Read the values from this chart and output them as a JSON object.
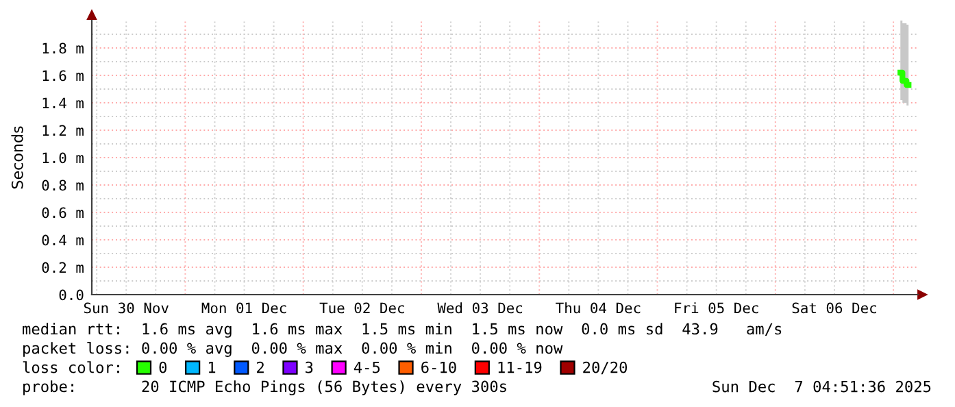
{
  "chart_data": {
    "type": "step",
    "ylabel": "Seconds",
    "legend_title": "loss color:",
    "legend": "bottom",
    "grid": true,
    "x": [
      "2025-12-07T01:25",
      "2025-12-07T02:15",
      "2025-12-07T03:05"
    ],
    "xlim": [
      "2025-11-30T05:00",
      "2025-12-07T05:00"
    ],
    "xticks": [
      {
        "value": "2025-11-30T12:00",
        "label": "Sun 30 Nov"
      },
      {
        "value": "2025-12-01T12:00",
        "label": "Mon 01 Dec"
      },
      {
        "value": "2025-12-02T12:00",
        "label": "Tue 02 Dec"
      },
      {
        "value": "2025-12-03T12:00",
        "label": "Wed 03 Dec"
      },
      {
        "value": "2025-12-04T12:00",
        "label": "Thu 04 Dec"
      },
      {
        "value": "2025-12-05T12:00",
        "label": "Fri 05 Dec"
      },
      {
        "value": "2025-12-06T12:00",
        "label": "Sat 06 Dec"
      }
    ],
    "ylim": [
      0,
      2.0
    ],
    "yticks": [
      {
        "value": 0,
        "label": "0.0"
      },
      {
        "value": 0.2,
        "label": "0.2 m"
      },
      {
        "value": 0.4,
        "label": "0.4 m"
      },
      {
        "value": 0.6,
        "label": "0.6 m"
      },
      {
        "value": 0.8,
        "label": "0.8 m"
      },
      {
        "value": 1.0,
        "label": "1.0 m"
      },
      {
        "value": 1.2,
        "label": "1.2 m"
      },
      {
        "value": 1.4,
        "label": "1.4 m"
      },
      {
        "value": 1.6,
        "label": "1.6 m"
      },
      {
        "value": 1.8,
        "label": "1.8 m"
      }
    ],
    "series": [
      {
        "name": "0",
        "color": "#26ff00",
        "values": [
          1.62,
          1.56,
          1.53
        ],
        "lower": [
          1.42,
          1.4,
          1.38
        ],
        "upper": [
          2.0,
          1.98,
          1.97
        ]
      },
      {
        "name": "1",
        "color": "#00b8ff",
        "values": [
          null,
          null,
          null
        ]
      },
      {
        "name": "2",
        "color": "#0059ff",
        "values": [
          null,
          null,
          null
        ]
      },
      {
        "name": "3",
        "color": "#7e00ff",
        "values": [
          null,
          null,
          null
        ]
      },
      {
        "name": "4-5",
        "color": "#ff00ff",
        "values": [
          null,
          null,
          null
        ]
      },
      {
        "name": "6-10",
        "color": "#ff5e00",
        "values": [
          null,
          null,
          null
        ]
      },
      {
        "name": "11-19",
        "color": "#ff0000",
        "values": [
          null,
          null,
          null
        ]
      },
      {
        "name": "20/20",
        "color": "#a10000",
        "values": [
          null,
          null,
          null
        ]
      }
    ],
    "annotations": [
      "median rtt:  1.6 ms avg  1.6 ms max  1.5 ms min  1.5 ms now  0.0 ms sd  43.9   am/s",
      "packet loss: 0.00 % avg  0.00 % max  0.00 % min  0.00 % now",
      "probe:       20 ICMP Echo Pings (56 Bytes) every 300s",
      "Sun Dec  7 04:51:36 2025"
    ]
  }
}
